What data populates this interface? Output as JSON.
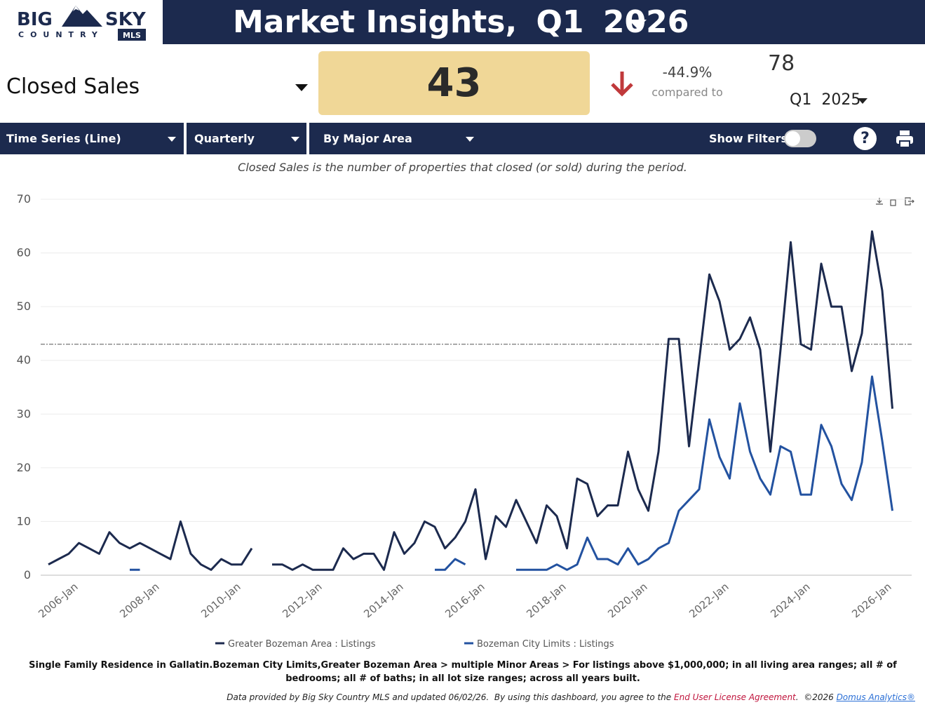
{
  "header": {
    "logo": {
      "big": "BIG",
      "sky": "SKY",
      "country": "COUNTRY",
      "mls": "MLS"
    },
    "title": "Market Insights,",
    "quarter": "Q1",
    "year": "2026"
  },
  "kpi": {
    "metric": "Closed Sales",
    "value": "43",
    "change": "-44.9%",
    "compared": "compared to",
    "prior_value": "78",
    "prior_quarter": "Q1",
    "prior_year": "2025"
  },
  "toolbar": {
    "chart_type": "Time Series (Line)",
    "period": "Quarterly",
    "grouping": "By Major Area",
    "filters": "Show Filters:",
    "help": "?"
  },
  "description": "Closed Sales is the number of properties that closed (or sold) during the period.",
  "chart_data": {
    "type": "line",
    "grid": true,
    "reference_line": 43,
    "ylim": [
      0,
      70
    ],
    "yticks": [
      0,
      10,
      20,
      30,
      40,
      50,
      60,
      70
    ],
    "categories": [
      null,
      null,
      "2006-Jan",
      null,
      null,
      null,
      null,
      null,
      null,
      null,
      "2008-Jan",
      null,
      null,
      null,
      null,
      null,
      null,
      null,
      "2010-Jan",
      null,
      null,
      null,
      null,
      null,
      null,
      null,
      "2012-Jan",
      null,
      null,
      null,
      null,
      null,
      null,
      null,
      "2014-Jan",
      null,
      null,
      null,
      null,
      null,
      null,
      null,
      "2016-Jan",
      null,
      null,
      null,
      null,
      null,
      null,
      null,
      "2018-Jan",
      null,
      null,
      null,
      null,
      null,
      null,
      null,
      "2020-Jan",
      null,
      null,
      null,
      null,
      null,
      null,
      null,
      "2022-Jan",
      null,
      null,
      null,
      null,
      null,
      null,
      null,
      "2024-Jan",
      null,
      null,
      null,
      null,
      null,
      null,
      null,
      "2026-Jan",
      null
    ],
    "series": [
      {
        "name": "Greater Bozeman Area : Listings",
        "color": "#1c2a4e",
        "values": [
          2,
          3,
          4,
          6,
          5,
          4,
          8,
          6,
          5,
          6,
          5,
          4,
          3,
          10,
          4,
          2,
          1,
          3,
          2,
          2,
          5,
          null,
          2,
          2,
          1,
          2,
          1,
          1,
          1,
          5,
          3,
          4,
          4,
          1,
          8,
          4,
          6,
          10,
          9,
          5,
          7,
          10,
          16,
          3,
          11,
          9,
          14,
          10,
          6,
          13,
          11,
          5,
          18,
          17,
          11,
          13,
          13,
          23,
          16,
          12,
          23,
          44,
          44,
          24,
          40,
          56,
          51,
          42,
          44,
          48,
          42,
          23,
          42,
          62,
          43,
          42,
          58,
          50,
          50,
          38,
          45,
          64,
          53,
          31
        ]
      },
      {
        "name": "Bozeman City Limits : Listings",
        "color": "#2352a0",
        "values": [
          null,
          null,
          null,
          null,
          null,
          null,
          null,
          null,
          1,
          1,
          null,
          null,
          null,
          null,
          null,
          null,
          null,
          null,
          null,
          null,
          null,
          null,
          null,
          null,
          null,
          null,
          null,
          null,
          null,
          null,
          null,
          null,
          null,
          null,
          null,
          null,
          null,
          null,
          1,
          1,
          3,
          2,
          null,
          null,
          null,
          null,
          1,
          1,
          1,
          1,
          2,
          1,
          2,
          7,
          3,
          3,
          2,
          5,
          2,
          3,
          5,
          6,
          12,
          14,
          16,
          29,
          22,
          18,
          32,
          23,
          18,
          15,
          24,
          23,
          15,
          15,
          28,
          24,
          17,
          14,
          21,
          37,
          25,
          12
        ]
      }
    ]
  },
  "footnote": "Single Family Residence in Gallatin.Bozeman City Limits,Greater Bozeman Area > multiple Minor Areas > For listings above $1,000,000; in all living area ranges; all # of bedrooms; all # of baths; in all lot size ranges; across all years built.",
  "footer": {
    "text": "Data provided by Big Sky Country MLS and updated 06/02/26.  By using this dashboard, you agree to the",
    "license": "End User License Agreement",
    "copyright": ".  ©2026",
    "vendor": "Domus Analytics®"
  }
}
